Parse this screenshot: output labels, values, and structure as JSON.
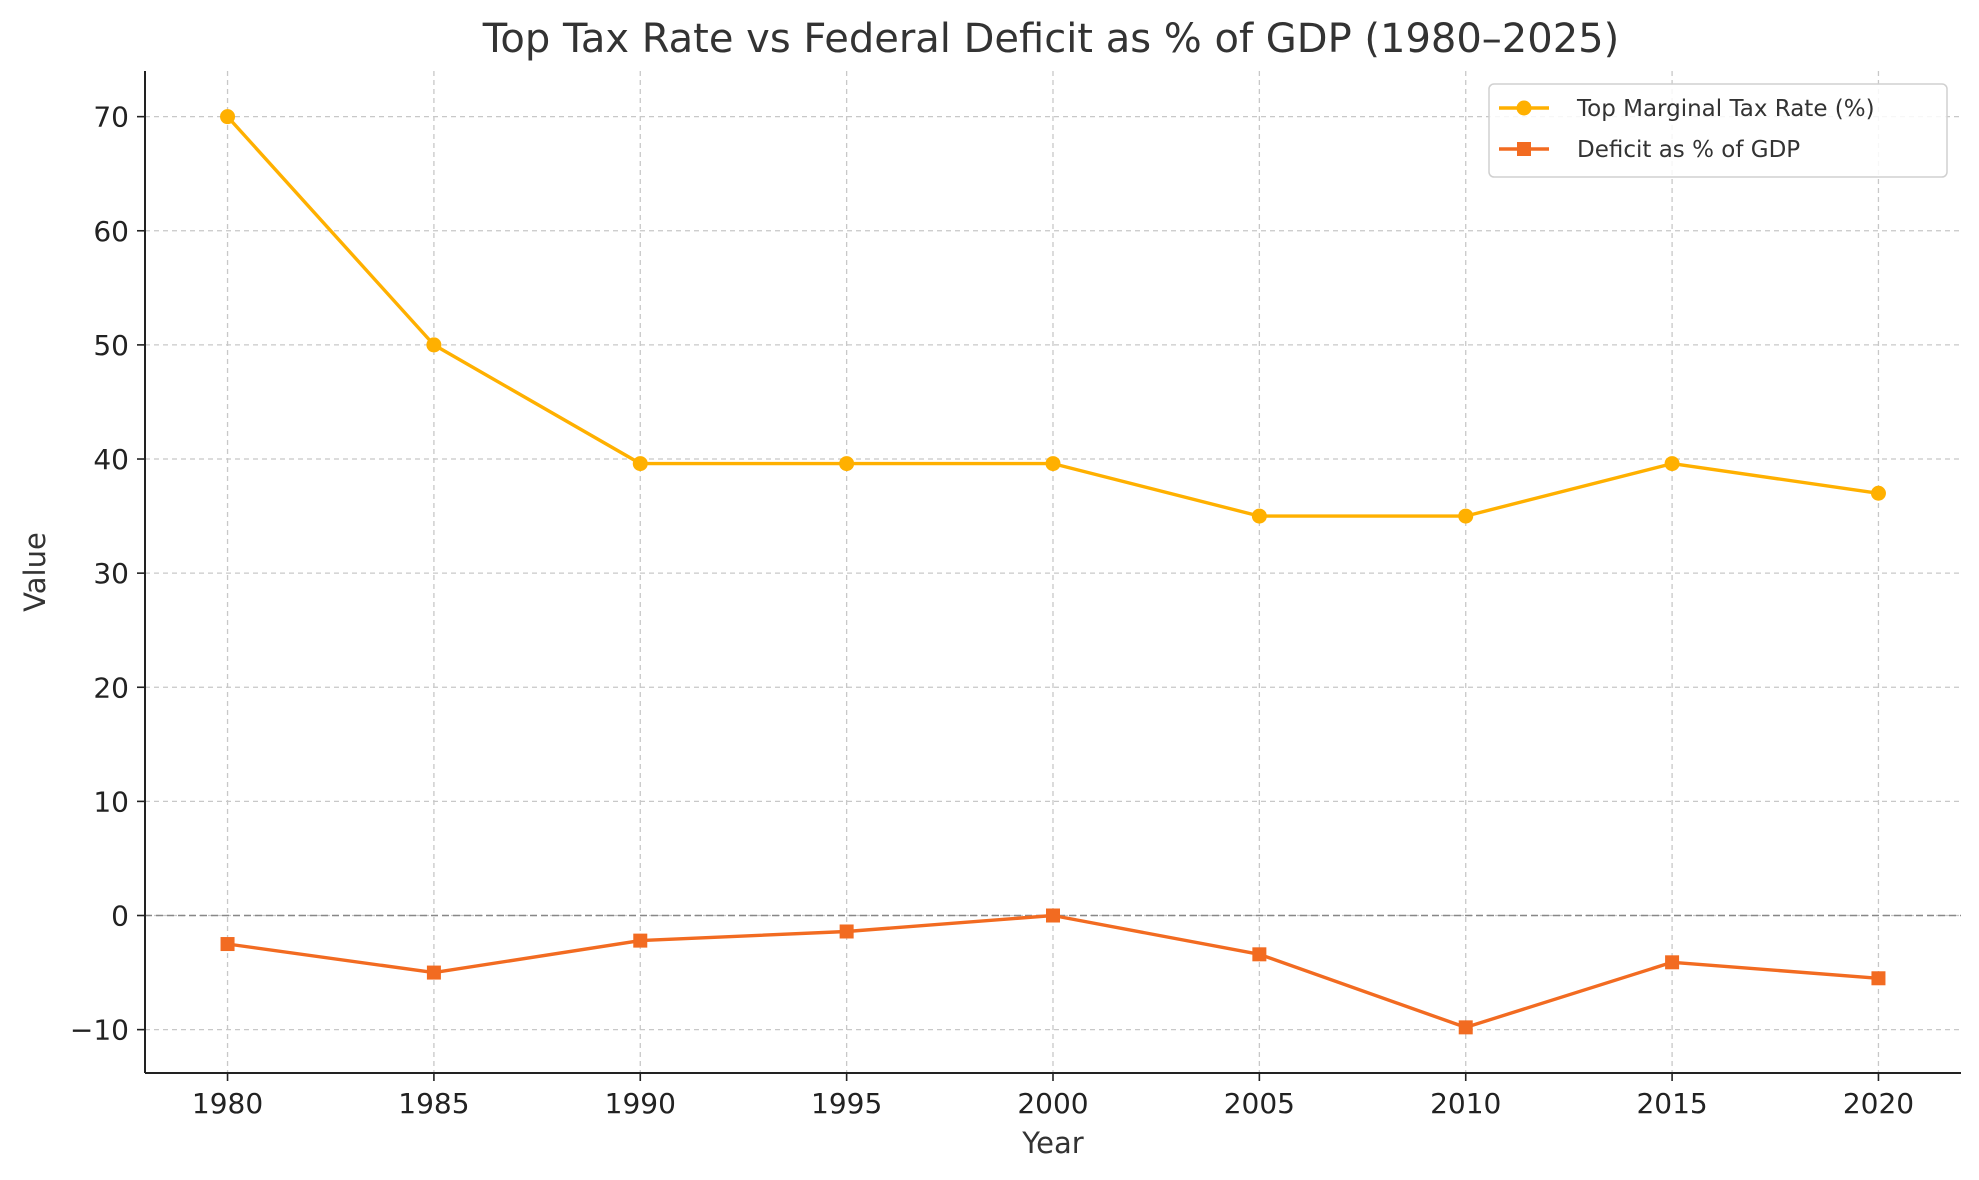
{
  "chart_data": {
    "type": "line",
    "title": "Top Tax Rate vs Federal Deficit as % of GDP (1980–2025)",
    "xlabel": "Year",
    "ylabel": "Value",
    "x": [
      1980,
      1985,
      1990,
      1995,
      2000,
      2005,
      2010,
      2015,
      2020
    ],
    "xlim": [
      1978,
      2022
    ],
    "ylim": [
      -13.8,
      74
    ],
    "x_ticks": [
      1980,
      1985,
      1990,
      1995,
      2000,
      2005,
      2010,
      2015,
      2020
    ],
    "y_ticks": [
      70,
      60,
      50,
      40,
      30,
      20,
      10,
      0,
      -10
    ],
    "y_tick_labels": [
      "70",
      "60",
      "50",
      "40",
      "30",
      "20",
      "10",
      "0",
      "−10"
    ],
    "grid": true,
    "zero_line": true,
    "legend_position": "top-right",
    "series": [
      {
        "name": "Top Marginal Tax Rate (%)",
        "color": "#FFB000",
        "marker": "circle",
        "values": [
          70,
          50,
          39.6,
          39.6,
          39.6,
          35,
          35,
          39.6,
          37
        ]
      },
      {
        "name": "Deficit as % of GDP",
        "color": "#F26B21",
        "marker": "square",
        "values": [
          -2.5,
          -5.0,
          -2.2,
          -1.4,
          0.0,
          -3.4,
          -9.8,
          -4.1,
          -5.5
        ]
      }
    ]
  }
}
